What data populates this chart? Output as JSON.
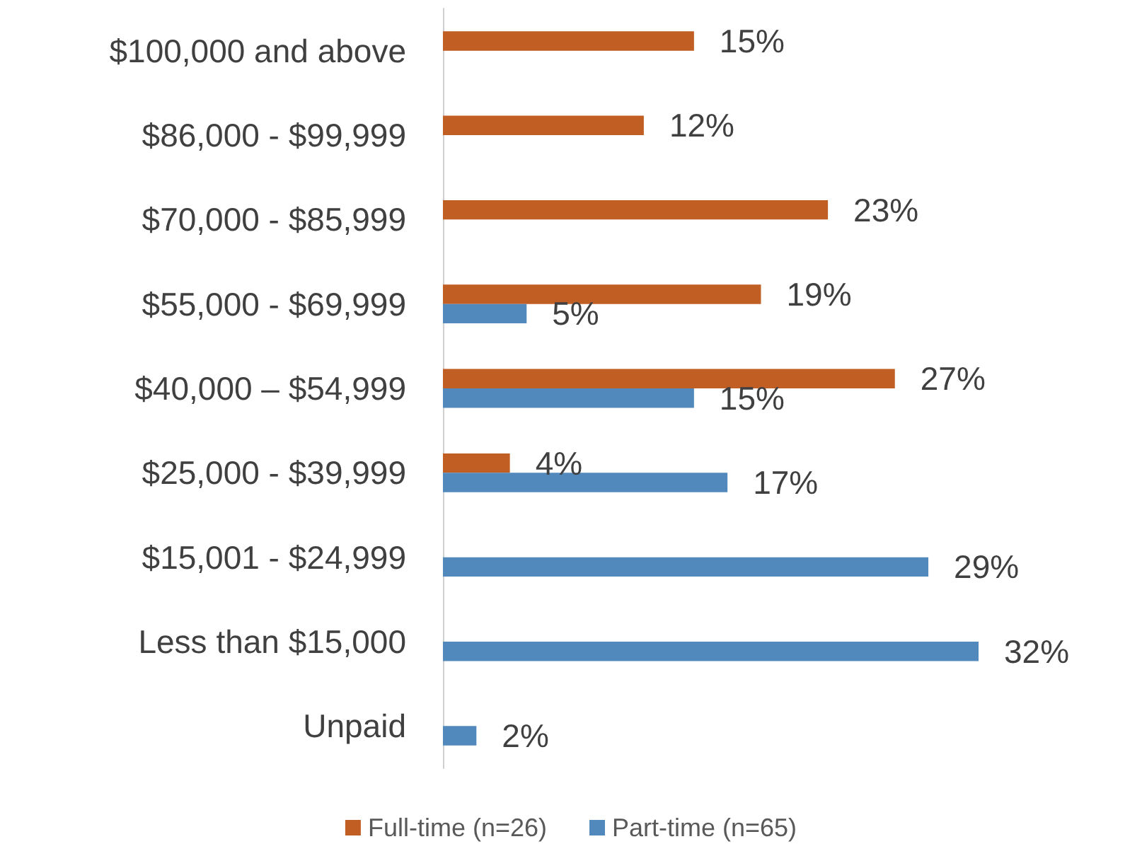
{
  "chart_data": {
    "type": "bar",
    "orientation": "horizontal",
    "categories": [
      "$100,000 and above",
      "$86,000 - $99,999",
      "$70,000 - $85,999",
      "$55,000 - $69,999",
      "$40,000 – $54,999",
      "$25,000 - $39,999",
      "$15,001 - $24,999",
      "Less than $15,000",
      "Unpaid"
    ],
    "series": [
      {
        "name": "Full-time (n=26)",
        "color": "#c05e24",
        "values": [
          15,
          12,
          23,
          19,
          27,
          4,
          null,
          null,
          null
        ],
        "value_labels": [
          "15%",
          "12%",
          "23%",
          "19%",
          "27%",
          "4%",
          null,
          null,
          null
        ]
      },
      {
        "name": "Part-time (n=65)",
        "color": "#5289bd",
        "values": [
          null,
          null,
          null,
          5,
          15,
          17,
          29,
          32,
          2
        ],
        "value_labels": [
          null,
          null,
          null,
          "5%",
          "15%",
          "17%",
          "29%",
          "32%",
          "2%"
        ]
      }
    ],
    "legend": "bottom"
  }
}
